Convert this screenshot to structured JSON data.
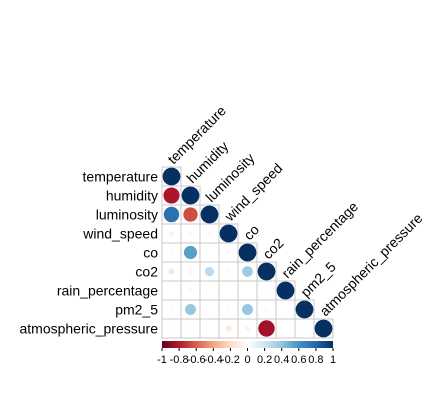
{
  "chart_data": {
    "type": "heatmap",
    "variables": [
      "temperature",
      "humidity",
      "luminosity",
      "wind_speed",
      "co",
      "co2",
      "rain_percentage",
      "pm2_5",
      "atmospheric_pressure"
    ],
    "correlations": [
      [
        1.0,
        -0.82,
        0.75,
        0.08,
        0.03,
        0.12,
        0.0,
        0.03,
        0.02
      ],
      [
        -0.82,
        1.0,
        -0.65,
        -0.05,
        0.55,
        -0.06,
        -0.06,
        0.38,
        -0.03
      ],
      [
        0.75,
        -0.65,
        1.0,
        0.04,
        0.0,
        0.27,
        0.0,
        0.0,
        0.0
      ],
      [
        0.08,
        -0.05,
        0.04,
        1.0,
        0.05,
        0.04,
        0.0,
        -0.04,
        -0.12
      ],
      [
        0.03,
        0.55,
        0.0,
        0.05,
        1.0,
        0.36,
        0.0,
        0.38,
        0.07
      ],
      [
        0.12,
        -0.06,
        0.27,
        0.04,
        0.36,
        1.0,
        0.02,
        0.05,
        -0.85
      ],
      [
        0.0,
        -0.06,
        0.0,
        0.0,
        0.0,
        0.02,
        1.0,
        0.0,
        0.0
      ],
      [
        0.03,
        0.38,
        0.0,
        -0.04,
        0.38,
        0.05,
        0.0,
        1.0,
        0.03
      ],
      [
        0.02,
        -0.03,
        0.0,
        -0.12,
        0.07,
        -0.85,
        0.0,
        0.03,
        1.0
      ]
    ],
    "shape": "circle",
    "triangle": "lower",
    "colorbar": {
      "range": [
        -1,
        1
      ],
      "tick_labels": [
        "-1",
        "-0.8",
        "-0.6",
        "-0.4",
        "-0.2",
        "0",
        "0.2",
        "0.4",
        "0.6",
        "0.8",
        "1"
      ],
      "colors": [
        "#67001F",
        "#B2182B",
        "#D6604D",
        "#F4A582",
        "#FDDBC7",
        "#FFFFFF",
        "#D1E5F0",
        "#92C5DE",
        "#4393C3",
        "#2166AC",
        "#053061"
      ],
      "placement": "bottom"
    },
    "grid": true
  }
}
